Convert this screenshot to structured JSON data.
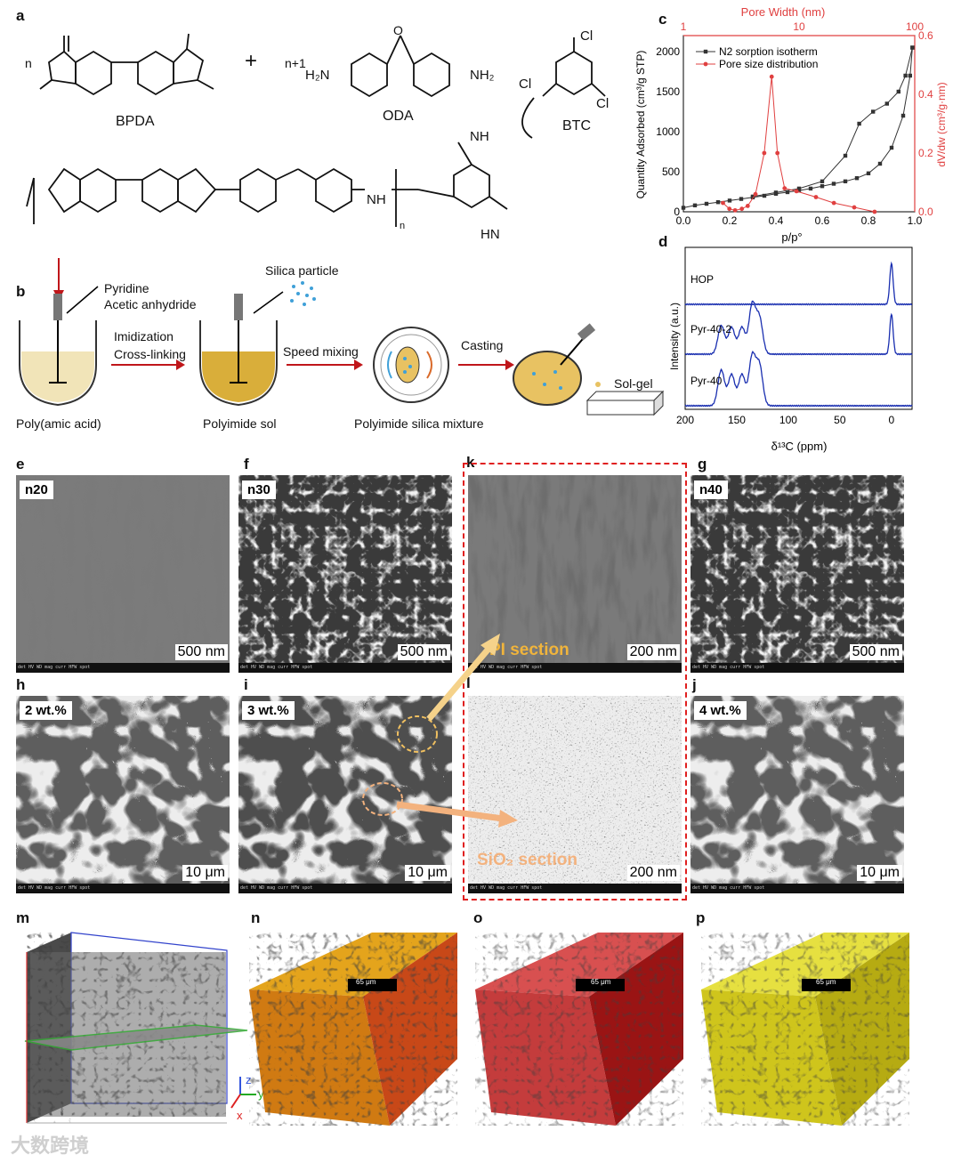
{
  "panels": {
    "a": "a",
    "b": "b",
    "c": "c",
    "d": "d",
    "e": "e",
    "f": "f",
    "k": "k",
    "g": "g",
    "h": "h",
    "i": "i",
    "l": "l",
    "j": "j",
    "m": "m",
    "n": "n",
    "o": "o",
    "p": "p"
  },
  "scheme": {
    "n": "n",
    "plus": "+",
    "n_plus_1": "n+1",
    "bpda": "BPDA",
    "oda": "ODA",
    "btc": "BTC",
    "h2n": "H₂N",
    "nh2": "NH₂",
    "cl": "Cl",
    "o": "O",
    "nh": "NH",
    "hn": "HN",
    "n_sub": "n"
  },
  "process": {
    "reagent1": "Pyridine",
    "reagent2": "Acetic anhydride",
    "silica_particle": "Silica particle",
    "step1_a": "Imidization",
    "step1_b": "Cross-linking",
    "step2": "Speed mixing",
    "step3": "Casting",
    "solgel": "Sol-gel",
    "cap1": "Poly(amic acid)",
    "cap2": "Polyimide sol",
    "cap3": "Polyimide silica mixture"
  },
  "chart_c": {
    "title_top": "Pore Width (nm)",
    "top_ticks": [
      "1",
      "10",
      "100"
    ],
    "xlabel": "p/p°",
    "ylabel_left": "Quantity Adsorbed (cm³/g STP)",
    "ylabel_right": "dV/dw (cm³/g·nm)",
    "legend1": "N2 sorption isotherm",
    "legend2": "Pore size distribution",
    "x_ticks": [
      "0.0",
      "0.2",
      "0.4",
      "0.6",
      "0.8",
      "1.0"
    ],
    "y_ticks": [
      "0",
      "500",
      "1000",
      "1500",
      "2000"
    ],
    "yr_ticks": [
      "0.0",
      "0.2",
      "0.4",
      "0.6"
    ]
  },
  "chart_d": {
    "ylabel": "Intensity (a.u.)",
    "xlabel": "δ¹³C (ppm)",
    "x_ticks": [
      "200",
      "150",
      "100",
      "50",
      "0"
    ],
    "labels": [
      "HOP",
      "Pyr-40-2",
      "Pyr-40"
    ]
  },
  "sem": {
    "e_label": "n20",
    "e_scale": "500 nm",
    "f_label": "n30",
    "f_scale": "500 nm",
    "k_scale": "200 nm",
    "k_note": "PI section",
    "g_label": "n40",
    "g_scale": "500 nm",
    "h_label": "2 wt.%",
    "h_scale": "10 μm",
    "i_label": "3 wt.%",
    "i_scale": "10 μm",
    "l_scale": "200 nm",
    "l_note": "SiO₂ section",
    "j_label": "4 wt.%",
    "j_scale": "10 μm"
  },
  "ct": {
    "n_scale": "65 μm",
    "o_scale": "65 μm",
    "p_scale": "65 μm",
    "axis_z": "z",
    "axis_y": "y",
    "axis_x": "x"
  },
  "watermark": "大数跨境",
  "chart_data": [
    {
      "type": "line",
      "title": "",
      "xlabel": "p/p°",
      "ylabel": "Quantity Adsorbed (cm³/g STP)",
      "xlim": [
        0,
        1.0
      ],
      "ylim": [
        0,
        2200
      ],
      "series": [
        {
          "name": "N2 sorption isotherm",
          "x": [
            0.0,
            0.05,
            0.1,
            0.15,
            0.2,
            0.25,
            0.3,
            0.35,
            0.4,
            0.45,
            0.5,
            0.55,
            0.6,
            0.65,
            0.7,
            0.75,
            0.8,
            0.85,
            0.9,
            0.95,
            0.98,
            0.99
          ],
          "y": [
            50,
            80,
            100,
            120,
            140,
            160,
            180,
            200,
            225,
            245,
            265,
            290,
            320,
            350,
            380,
            420,
            480,
            600,
            800,
            1200,
            1700,
            2050
          ]
        },
        {
          "name": "N2 sorption isotherm (desorption)",
          "x": [
            0.99,
            0.96,
            0.93,
            0.88,
            0.82,
            0.76,
            0.7,
            0.6,
            0.5,
            0.4,
            0.3
          ],
          "y": [
            2050,
            1700,
            1500,
            1350,
            1250,
            1100,
            700,
            380,
            290,
            240,
            190
          ]
        }
      ]
    },
    {
      "type": "line",
      "title": "",
      "xlabel": "Pore Width (nm)",
      "ylabel": "dV/dw (cm³/g·nm)",
      "xscale": "log",
      "xlim": [
        1,
        100
      ],
      "ylim": [
        0,
        0.6
      ],
      "series": [
        {
          "name": "Pore size distribution",
          "x": [
            2.2,
            2.5,
            2.8,
            3.2,
            3.6,
            4.2,
            5.0,
            5.8,
            6.5,
            7.5,
            9.5,
            14,
            20,
            30,
            45
          ],
          "y": [
            0.03,
            0.01,
            0.005,
            0.01,
            0.02,
            0.06,
            0.2,
            0.46,
            0.2,
            0.08,
            0.07,
            0.05,
            0.03,
            0.015,
            0.0
          ]
        }
      ]
    },
    {
      "type": "line",
      "title": "",
      "xlabel": "δ¹³C (ppm)",
      "ylabel": "Intensity (a.u.)",
      "xlim": [
        200,
        -20
      ],
      "series": [
        {
          "name": "HOP",
          "peaks_ppm": [
            0
          ]
        },
        {
          "name": "Pyr-40-2",
          "peaks_ppm": [
            165,
            155,
            145,
            135,
            128,
            0
          ]
        },
        {
          "name": "Pyr-40",
          "peaks_ppm": [
            165,
            155,
            145,
            135,
            128
          ]
        }
      ]
    }
  ]
}
